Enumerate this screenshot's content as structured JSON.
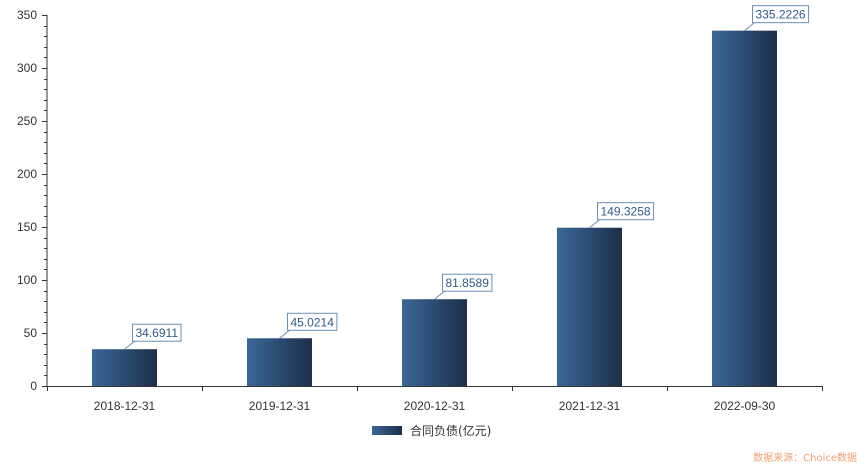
{
  "chart_data": {
    "type": "bar",
    "categories": [
      "2018-12-31",
      "2019-12-31",
      "2020-12-31",
      "2021-12-31",
      "2022-09-30"
    ],
    "series": [
      {
        "name": "合同负债(亿元)",
        "values": [
          34.6911,
          45.0214,
          81.8589,
          149.3258,
          335.2226
        ],
        "labels": [
          "34.6911",
          "45.0214",
          "81.8589",
          "149.3258",
          "335.2226"
        ]
      }
    ],
    "ylim": [
      0,
      350
    ],
    "yticks": [
      0,
      50,
      100,
      150,
      200,
      250,
      300,
      350
    ],
    "title": "",
    "xlabel": "",
    "ylabel": "",
    "grid": false,
    "legend_position": "bottom-center",
    "colors": {
      "bar_light": "#3a6798",
      "bar_dark": "#1d2f4a",
      "label": "#2f5b8a",
      "axis": "#333333"
    }
  },
  "source_note": "数据来源：Choice数据"
}
